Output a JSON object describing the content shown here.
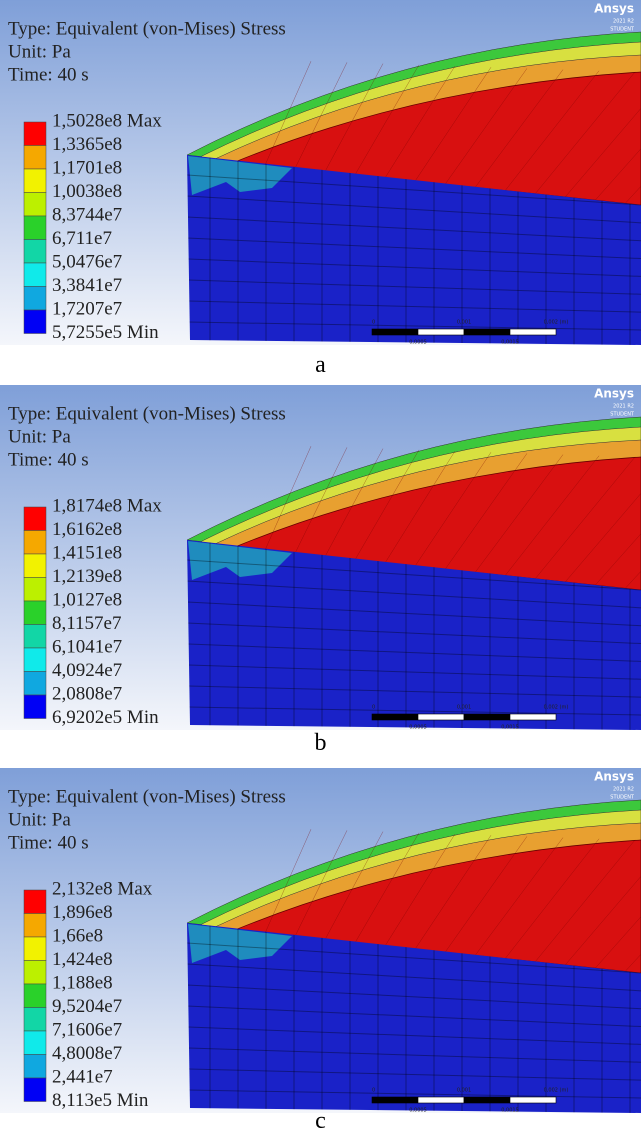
{
  "panels": [
    {
      "title": "Type: Equivalent (von-Mises) Stress",
      "unit": "Unit: Pa",
      "time": "Time: 40 s",
      "legend": [
        "1,5028e8 Max",
        "1,3365e8",
        "1,1701e8",
        "1,0038e8",
        "8,3744e7",
        "6,711e7",
        "5,0476e7",
        "3,3841e7",
        "1,7207e7",
        "5,7255e5 Min"
      ],
      "scale_bar": [
        "0",
        "0,001",
        "0,002 (m)",
        "0,0005",
        "0,0015"
      ],
      "logo": "Ansys",
      "version": "2021 R2",
      "edition": "STUDENT",
      "caption": "a"
    },
    {
      "title": "Type: Equivalent (von-Mises) Stress",
      "unit": "Unit: Pa",
      "time": "Time: 40 s",
      "legend": [
        "1,8174e8 Max",
        "1,6162e8",
        "1,4151e8",
        "1,2139e8",
        "1,0127e8",
        "8,1157e7",
        "6,1041e7",
        "4,0924e7",
        "2,0808e7",
        "6,9202e5 Min"
      ],
      "scale_bar": [
        "0",
        "0,001",
        "0,002 (m)",
        "0,0005",
        "0,0015"
      ],
      "logo": "Ansys",
      "version": "2021 R2",
      "edition": "STUDENT",
      "caption": "b"
    },
    {
      "title": "Type: Equivalent (von-Mises) Stress",
      "unit": "Unit: Pa",
      "time": "Time: 40 s",
      "legend": [
        "2,132e8 Max",
        "1,896e8",
        "1,66e8",
        "1,424e8",
        "1,188e8",
        "9,5204e7",
        "7,1606e7",
        "4,8008e7",
        "2,441e7",
        "8,113e5 Min"
      ],
      "scale_bar": [
        "0",
        "0,001",
        "0,002 (m)",
        "0,0005",
        "0,0015"
      ],
      "logo": "Ansys",
      "version": "2021 R2",
      "edition": "STUDENT",
      "caption": "c"
    }
  ]
}
